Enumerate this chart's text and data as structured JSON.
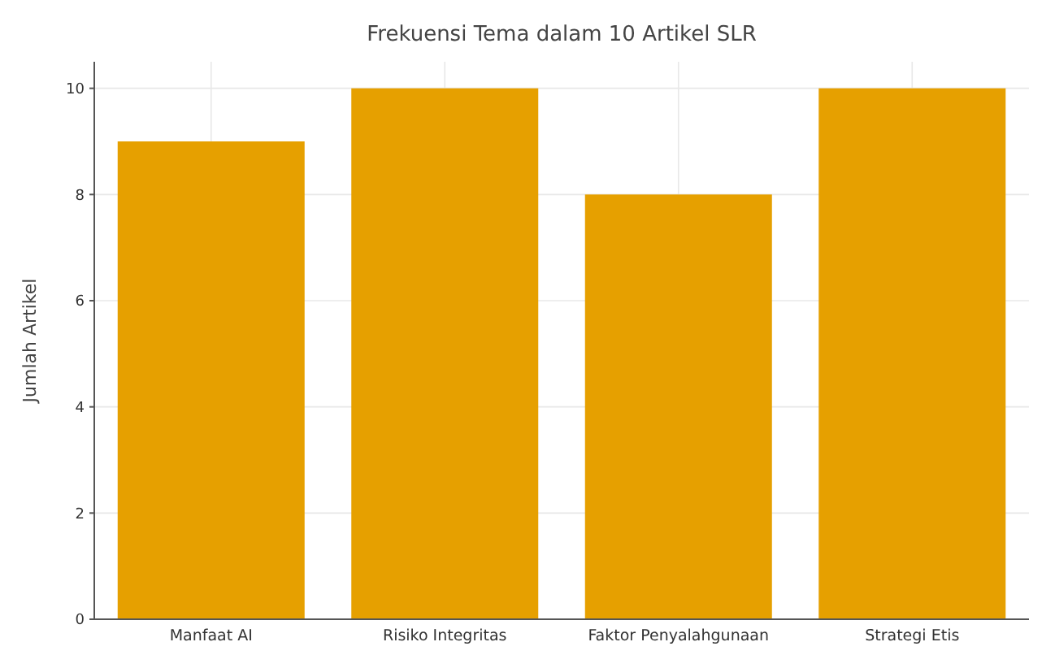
{
  "chart_data": {
    "type": "bar",
    "title": "Frekuensi Tema dalam 10 Artikel SLR",
    "ylabel": "Jumlah Artikel",
    "categories": [
      "Manfaat AI",
      "Risiko Integritas",
      "Faktor Penyalahgunaan",
      "Strategi Etis"
    ],
    "values": [
      9,
      10,
      8,
      10
    ],
    "color": "#e6a000",
    "ylim": [
      0,
      10.5
    ],
    "yticks": [
      0,
      2,
      4,
      6,
      8,
      10
    ],
    "grid": true
  }
}
